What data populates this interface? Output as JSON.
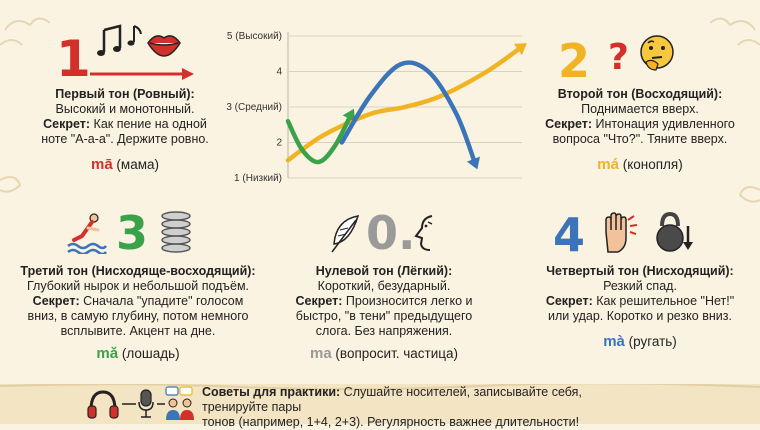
{
  "colors": {
    "background": "#fbf3e1",
    "tone1": "#d2312b",
    "tone2": "#f0b323",
    "tone3": "#3aa34a",
    "tone4": "#3b74b8",
    "tone0": "#9a9a9a"
  },
  "tones": [
    {
      "number": "1",
      "title": "Первый тон (Ровный):",
      "lines": [
        "Высокий и монотонный."
      ],
      "secret_label": "Секрет:",
      "secret_lines": [
        " Как пение на одной",
        "ноте \"А-а-а\". Держите ровно."
      ],
      "syllable": "mā",
      "meaning": " (мама)",
      "icons": [
        "music-notes-icon",
        "lips-icon"
      ]
    },
    {
      "number": "2",
      "title": "Второй тон (Восходящий):",
      "lines": [
        "Поднимается вверх."
      ],
      "secret_label": "Секрет:",
      "secret_lines": [
        " Интонация удивленного",
        "вопроса \"Что?\". Тяните вверх."
      ],
      "syllable": "má",
      "meaning": " (конопля)",
      "icons": [
        "question-mark-icon",
        "thinking-face-icon"
      ]
    },
    {
      "number": "3",
      "title": "Третий тон (Нисходяще-восходящий):",
      "lines": [
        "Глубокий нырок и небольшой подъём."
      ],
      "secret_label": "Секрет:",
      "secret_lines": [
        " Сначала \"упадите\" голосом",
        "вниз, в самую глубину, потом немного",
        "всплывите. Акцент на дне."
      ],
      "syllable": "mǎ",
      "meaning": " (лошадь)",
      "icons": [
        "diver-icon",
        "spring-icon"
      ]
    },
    {
      "number": "0.",
      "title": "Нулевой тон (Лёгкий):",
      "lines": [
        "Короткий, безударный."
      ],
      "secret_label": "Секрет:",
      "secret_lines": [
        " Произносится легко и",
        "быстро, \"в тени\" предыдущего",
        "слога. Без напряжения."
      ],
      "syllable": "ma",
      "meaning": " (вопросит. частица)",
      "icons": [
        "feather-icon",
        "face-profile-icon"
      ]
    },
    {
      "number": "4",
      "title": "Четвертый тон (Нисходящий):",
      "lines": [
        "Резкий спад."
      ],
      "secret_label": "Секрет:",
      "secret_lines": [
        " Как решительное \"Нет!\"",
        "или удар. Коротко и резко вниз."
      ],
      "syllable": "mà",
      "meaning": " (ругать)",
      "icons": [
        "hand-stop-icon",
        "kettlebell-icon"
      ]
    }
  ],
  "chart_data": {
    "type": "line",
    "title": "",
    "xlabel": "",
    "ylabel": "",
    "y_tick_labels": [
      "1 (Низкий)",
      "2",
      "3 (Средний)",
      "4",
      "5 (Высокий)"
    ],
    "ylim": [
      1,
      5
    ],
    "xlim": [
      0,
      1
    ],
    "grid": true,
    "series": [
      {
        "color": "#f0b323",
        "x": [
          0.0,
          0.15,
          0.35,
          0.5,
          0.65,
          0.85,
          1.0
        ],
        "y": [
          1.5,
          2.2,
          2.8,
          3.0,
          3.3,
          4.0,
          4.7
        ]
      },
      {
        "color": "#3aa34a",
        "x": [
          0.0,
          0.06,
          0.13,
          0.2,
          0.27
        ],
        "y": [
          2.6,
          1.8,
          1.45,
          1.9,
          2.8
        ]
      },
      {
        "color": "#3b74b8",
        "x": [
          0.23,
          0.35,
          0.48,
          0.6,
          0.72,
          0.8
        ],
        "y": [
          2.0,
          3.3,
          4.2,
          4.0,
          2.8,
          1.4
        ]
      }
    ]
  },
  "footer": {
    "label": "Советы для практики:",
    "text": " Слушайте носителей, записывайте себя, тренируйте пары",
    "text2": "тонов (например, 1+4, 2+3). Регулярность важнее длительности!",
    "icons": [
      "headphones-icon",
      "microphone-icon",
      "people-chat-icon"
    ]
  }
}
